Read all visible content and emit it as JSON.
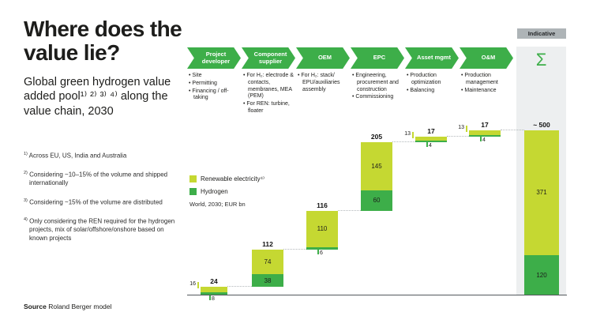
{
  "page": {
    "title": "Where does the value lie?",
    "subtitle": "Global green hydrogen value added pool¹⁾ ²⁾ ³⁾ ⁴⁾ along the value chain, 2030",
    "footnotes": [
      {
        "marker": "1)",
        "text": "Across EU, US, India and Australia"
      },
      {
        "marker": "2)",
        "text": "Considering ~10–15% of the volume and shipped internationally"
      },
      {
        "marker": "3)",
        "text": "Considering ~15% of the volume are distributed"
      },
      {
        "marker": "4)",
        "text": "Only considering the REN required for the hydrogen projects, mix of solar/offshore/onshore based on known projects"
      }
    ],
    "source_label": "Source",
    "source_text": "Roland Berger model",
    "indicative_label": "Indicative"
  },
  "value_chain": {
    "sum_symbol": "Σ",
    "stages": [
      {
        "label": "Project developer",
        "bullets": [
          "Site",
          "Permitting",
          "Financing / off-taking"
        ]
      },
      {
        "label": "Component supplier",
        "bullets": [
          "For H₂: electrode & contacts, membranes, MEA (PEM)",
          "For REN: turbine, floater"
        ]
      },
      {
        "label": "OEM",
        "bullets": [
          "For H₂: stack/ EPU/auxiliaries assembly"
        ]
      },
      {
        "label": "EPC",
        "bullets": [
          "Engineering, procurement and construction",
          "Commissioning"
        ]
      },
      {
        "label": "Asset mgmt",
        "bullets": [
          "Production optimization",
          "Balancing"
        ]
      },
      {
        "label": "O&M",
        "bullets": [
          "Production management",
          "Maintenance"
        ]
      }
    ]
  },
  "chart_data": {
    "type": "bar",
    "subtype": "waterfall-stacked",
    "title": "Global green hydrogen value added pool along the value chain, 2030",
    "scope_note": "World, 2030; EUR bn",
    "unit": "EUR bn",
    "categories": [
      "Project developer",
      "Component supplier",
      "OEM",
      "EPC",
      "Asset mgmt",
      "O&M",
      "Sum"
    ],
    "series": [
      {
        "name": "Renewable electricity⁴⁾",
        "color": "#c5d832",
        "values": [
          16,
          74,
          110,
          145,
          13,
          13,
          371
        ]
      },
      {
        "name": "Hydrogen",
        "color": "#3dae49",
        "values": [
          8,
          38,
          6,
          60,
          4,
          4,
          120
        ]
      }
    ],
    "totals": [
      24,
      112,
      116,
      205,
      17,
      17,
      "~ 500"
    ],
    "cumulative_levels": [
      24,
      136,
      252,
      457,
      474,
      491
    ],
    "legend_position": "middle-left",
    "gridlines": false,
    "annotation": "Indicative"
  },
  "colors": {
    "renewable_light_green": "#c5d832",
    "hydrogen_dark_green": "#3dae49",
    "chevron_green": "#3dae49",
    "sum_band_gray": "#edeff0",
    "badge_gray": "#aeb4b7",
    "axis_gray": "#53585c",
    "text_dark": "#1d1d1b"
  }
}
